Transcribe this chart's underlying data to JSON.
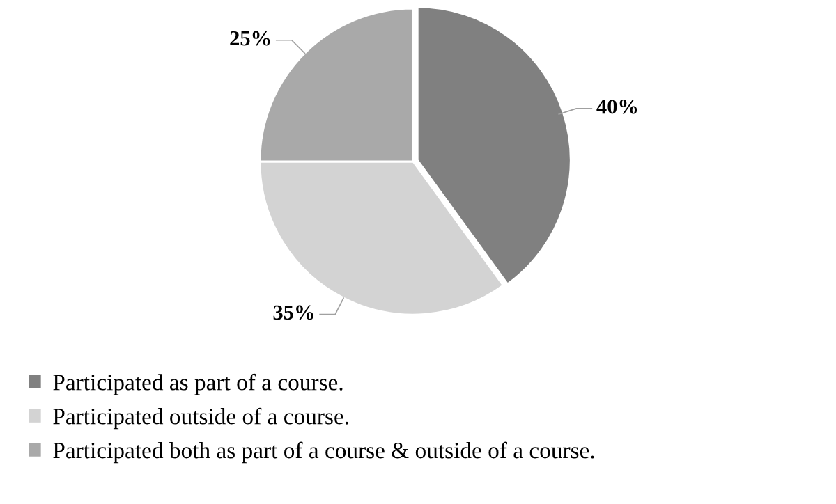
{
  "chart_data": {
    "type": "pie",
    "categories": [
      "Participated as part of a course.",
      "Participated outside of a course.",
      "Participated both as part of a course & outside of a course."
    ],
    "values": [
      40,
      35,
      25
    ],
    "colors": [
      "#808080",
      "#d3d3d3",
      "#a9a9a9"
    ],
    "value_labels": [
      "40%",
      "35%",
      "25%"
    ],
    "legend": "bottom"
  }
}
